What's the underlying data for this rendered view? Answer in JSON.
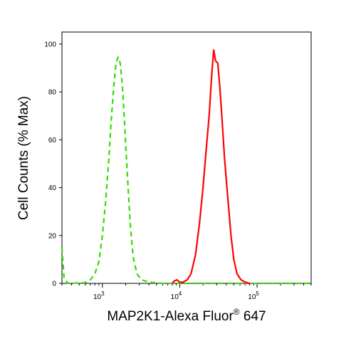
{
  "chart_data": {
    "type": "line",
    "xlabel": "MAP2K1-Alexa Fluor",
    "xlabel_sup": "®",
    "xlabel_suffix": " 647",
    "ylabel": "Cell Counts (% Max)",
    "x_scale": "log",
    "xlim": [
      300,
      500000
    ],
    "ylim": [
      0,
      105
    ],
    "y_ticks": [
      0,
      20,
      40,
      60,
      80,
      100
    ],
    "y_tick_labels": [
      "0",
      "20",
      "40",
      "60",
      "80",
      "100"
    ],
    "x_ticks": [
      1000,
      10000,
      100000
    ],
    "x_tick_labels": [
      {
        "base": "10",
        "exp": "3"
      },
      {
        "base": "10",
        "exp": "4"
      },
      {
        "base": "10",
        "exp": "5"
      }
    ],
    "grid": false,
    "series": [
      {
        "color": "#33dd00",
        "style": "dashed",
        "points": [
          [
            300,
            15
          ],
          [
            320,
            2
          ],
          [
            360,
            0
          ],
          [
            600,
            0.3
          ],
          [
            700,
            1.5
          ],
          [
            800,
            4
          ],
          [
            900,
            9
          ],
          [
            1000,
            20
          ],
          [
            1100,
            34
          ],
          [
            1200,
            50
          ],
          [
            1300,
            68
          ],
          [
            1400,
            82
          ],
          [
            1500,
            92
          ],
          [
            1600,
            94.5
          ],
          [
            1700,
            92
          ],
          [
            1800,
            84
          ],
          [
            1900,
            72
          ],
          [
            2000,
            58
          ],
          [
            2150,
            40
          ],
          [
            2300,
            24
          ],
          [
            2500,
            11
          ],
          [
            2800,
            4
          ],
          [
            3200,
            1.5
          ],
          [
            4000,
            0.5
          ],
          [
            6000,
            0
          ],
          [
            9000,
            0
          ],
          [
            15000,
            0
          ],
          [
            30000,
            0
          ],
          [
            60000,
            0
          ],
          [
            100000,
            0
          ],
          [
            200000,
            0
          ],
          [
            500000,
            0
          ]
        ]
      },
      {
        "color": "#ff0000",
        "style": "solid",
        "points": [
          [
            8000,
            0
          ],
          [
            8500,
            1
          ],
          [
            9200,
            1.5
          ],
          [
            10000,
            0.5
          ],
          [
            11000,
            0.5
          ],
          [
            12500,
            1.5
          ],
          [
            14000,
            4
          ],
          [
            16000,
            12
          ],
          [
            18000,
            25
          ],
          [
            20000,
            40
          ],
          [
            22000,
            56
          ],
          [
            24000,
            70
          ],
          [
            26000,
            88
          ],
          [
            27500,
            97.5
          ],
          [
            29000,
            93
          ],
          [
            31000,
            92
          ],
          [
            33000,
            82
          ],
          [
            35000,
            70
          ],
          [
            38000,
            52
          ],
          [
            42000,
            35
          ],
          [
            46000,
            20
          ],
          [
            50000,
            10
          ],
          [
            55000,
            4
          ],
          [
            62000,
            1.5
          ],
          [
            70000,
            0.5
          ],
          [
            80000,
            0
          ]
        ]
      }
    ]
  }
}
